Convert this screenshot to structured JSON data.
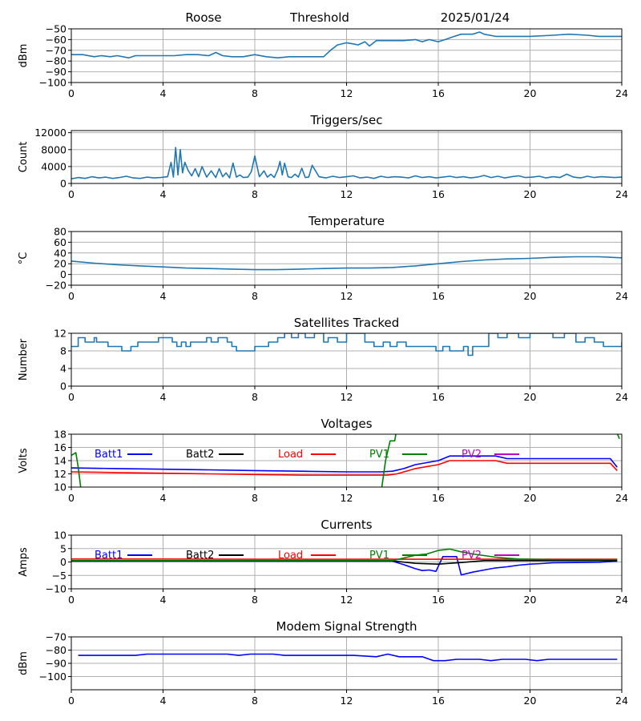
{
  "header": {
    "station": "Roose",
    "mode": "Threshold",
    "date": "2025/01/24"
  },
  "colors": {
    "default": "#1f77b4",
    "batt1": "#0000ff",
    "batt2": "#000000",
    "load": "#ff0000",
    "pv1": "#008000",
    "pv2": "#c000c0",
    "grid": "#b0b0b0"
  },
  "chart_data": [
    {
      "id": "signal",
      "type": "line",
      "title": "",
      "xlabel": "",
      "ylabel": "dBm",
      "xlim": [
        0,
        24
      ],
      "xticks": [
        0,
        4,
        8,
        12,
        16,
        20,
        24
      ],
      "ylim": [
        -100,
        -50
      ],
      "yticks": [
        -100,
        -90,
        -80,
        -70,
        -60,
        -50
      ],
      "grid": true,
      "series": [
        {
          "color": "#1f77b4",
          "x": [
            0,
            0.5,
            1,
            1.3,
            1.7,
            2,
            2.5,
            2.8,
            3,
            3.5,
            4,
            4.5,
            5,
            5.5,
            6,
            6.3,
            6.6,
            7,
            7.5,
            8,
            8.5,
            9,
            9.5,
            10,
            10.5,
            11,
            11.3,
            11.6,
            12,
            12.3,
            12.5,
            12.8,
            13,
            13.3,
            14,
            14.5,
            15,
            15.3,
            15.6,
            16,
            16.3,
            16.7,
            17,
            17.5,
            17.8,
            18,
            18.5,
            19,
            20,
            21,
            21.7,
            22.5,
            23,
            24
          ],
          "y": [
            -74,
            -74,
            -76,
            -75,
            -76,
            -75,
            -77,
            -75,
            -75,
            -75,
            -75,
            -75,
            -74,
            -74,
            -75,
            -72,
            -75,
            -76,
            -76,
            -74,
            -76,
            -77,
            -76,
            -76,
            -76,
            -76,
            -70,
            -65,
            -63,
            -64,
            -65,
            -62,
            -66,
            -61,
            -61,
            -61,
            -60,
            -62,
            -60,
            -62,
            -60,
            -57,
            -55,
            -55,
            -53,
            -55,
            -57,
            -57,
            -57,
            -56,
            -55,
            -56,
            -57,
            -57
          ]
        }
      ]
    },
    {
      "id": "triggers",
      "type": "line",
      "title": "Triggers/sec",
      "xlabel": "",
      "ylabel": "Count",
      "xlim": [
        0,
        24
      ],
      "xticks": [
        0,
        4,
        8,
        12,
        16,
        20,
        24
      ],
      "ylim": [
        0,
        12500
      ],
      "yticks": [
        0,
        4000,
        8000,
        12000
      ],
      "grid": true,
      "series": [
        {
          "color": "#1f77b4",
          "x": [
            0,
            0.3,
            0.6,
            0.9,
            1.2,
            1.5,
            1.8,
            2.1,
            2.4,
            2.7,
            3,
            3.3,
            3.6,
            3.9,
            4.2,
            4.35,
            4.45,
            4.55,
            4.65,
            4.75,
            4.85,
            4.95,
            5.1,
            5.25,
            5.4,
            5.55,
            5.7,
            5.9,
            6.1,
            6.3,
            6.45,
            6.6,
            6.75,
            6.9,
            7.05,
            7.2,
            7.35,
            7.5,
            7.7,
            7.85,
            8.0,
            8.2,
            8.4,
            8.55,
            8.7,
            8.85,
            9.0,
            9.1,
            9.2,
            9.3,
            9.45,
            9.6,
            9.75,
            9.9,
            10.05,
            10.2,
            10.35,
            10.5,
            10.8,
            11.1,
            11.4,
            11.7,
            12,
            12.3,
            12.6,
            12.9,
            13.2,
            13.5,
            13.8,
            14.1,
            14.4,
            14.7,
            15,
            15.3,
            15.6,
            15.9,
            16.2,
            16.5,
            16.8,
            17.1,
            17.4,
            17.7,
            18,
            18.3,
            18.6,
            18.9,
            19.2,
            19.5,
            19.8,
            20.1,
            20.4,
            20.7,
            21,
            21.3,
            21.6,
            21.9,
            22.2,
            22.5,
            22.8,
            23.1,
            23.4,
            23.7,
            24
          ],
          "y": [
            1100,
            1400,
            1200,
            1600,
            1300,
            1500,
            1200,
            1400,
            1700,
            1300,
            1200,
            1500,
            1300,
            1400,
            1600,
            5000,
            1500,
            8500,
            2000,
            8000,
            2500,
            5000,
            3000,
            1800,
            3500,
            1600,
            4000,
            1500,
            3000,
            1400,
            3500,
            1600,
            2500,
            1300,
            4800,
            1500,
            2000,
            1400,
            1500,
            2800,
            6500,
            1600,
            3000,
            1500,
            2200,
            1400,
            3200,
            5200,
            2000,
            4800,
            1600,
            1400,
            2200,
            1500,
            3600,
            1400,
            1500,
            4300,
            1600,
            1300,
            1700,
            1400,
            1600,
            1800,
            1300,
            1500,
            1200,
            1700,
            1400,
            1600,
            1500,
            1300,
            1800,
            1400,
            1600,
            1300,
            1500,
            1700,
            1400,
            1600,
            1300,
            1500,
            1900,
            1400,
            1700,
            1300,
            1600,
            1800,
            1400,
            1500,
            1700,
            1300,
            1600,
            1400,
            2200,
            1500,
            1300,
            1700,
            1400,
            1600,
            1500,
            1400,
            1500
          ]
        }
      ]
    },
    {
      "id": "temperature",
      "type": "line",
      "title": "Temperature",
      "xlabel": "",
      "ylabel": "°C",
      "xlim": [
        0,
        24
      ],
      "xticks": [
        0,
        4,
        8,
        12,
        16,
        20,
        24
      ],
      "ylim": [
        -20,
        80
      ],
      "yticks": [
        -20,
        0,
        20,
        40,
        60,
        80
      ],
      "grid": true,
      "series": [
        {
          "color": "#1f77b4",
          "x": [
            0,
            1,
            2,
            3,
            4,
            5,
            6,
            7,
            8,
            9,
            10,
            11,
            12,
            13,
            14,
            15,
            16,
            17,
            18,
            19,
            20,
            21,
            22,
            23,
            24
          ],
          "y": [
            25,
            21,
            18,
            16,
            14,
            12,
            11,
            10,
            9,
            9,
            10,
            11,
            12,
            12,
            13,
            16,
            20,
            24,
            27,
            29,
            30,
            32,
            33,
            33,
            31
          ]
        }
      ]
    },
    {
      "id": "satellites",
      "type": "line",
      "title": "Satellites Tracked",
      "xlabel": "",
      "ylabel": "Number",
      "xlim": [
        0,
        24
      ],
      "xticks": [
        0,
        4,
        8,
        12,
        16,
        20,
        24
      ],
      "ylim": [
        0,
        12
      ],
      "yticks": [
        0,
        4,
        8,
        12
      ],
      "grid": true,
      "series": [
        {
          "color": "#1f77b4",
          "step": true,
          "x": [
            0,
            0.3,
            0.6,
            1,
            1.1,
            1.3,
            1.6,
            2.2,
            2.6,
            2.9,
            3.5,
            3.8,
            4.2,
            4.4,
            4.6,
            4.8,
            5.0,
            5.2,
            5.4,
            5.7,
            5.9,
            6.1,
            6.4,
            6.8,
            7.0,
            7.2,
            7.6,
            8.0,
            8.4,
            8.6,
            9.0,
            9.3,
            9.6,
            9.9,
            10.2,
            10.6,
            11.0,
            11.2,
            11.6,
            12.0,
            12.4,
            12.8,
            13.2,
            13.6,
            13.9,
            14.2,
            14.6,
            15.0,
            15.5,
            15.9,
            16.2,
            16.5,
            16.8,
            17.1,
            17.3,
            17.5,
            17.8,
            18.2,
            18.6,
            19.0,
            19.5,
            20.0,
            20.5,
            21.0,
            21.5,
            22.0,
            22.4,
            22.8,
            23.2,
            23.6,
            24
          ],
          "y": [
            9,
            11,
            10,
            11,
            10,
            10,
            9,
            8,
            9,
            10,
            10,
            11,
            11,
            10,
            9,
            10,
            9,
            10,
            10,
            10,
            11,
            10,
            11,
            10,
            9,
            8,
            8,
            9,
            9,
            10,
            11,
            12,
            11,
            12,
            11,
            12,
            10,
            11,
            10,
            12,
            12,
            10,
            9,
            10,
            9,
            10,
            9,
            9,
            9,
            8,
            9,
            8,
            8,
            9,
            7,
            9,
            9,
            12,
            11,
            12,
            11,
            12,
            12,
            11,
            12,
            10,
            11,
            10,
            9,
            9,
            10
          ]
        }
      ]
    },
    {
      "id": "voltages",
      "type": "line",
      "title": "Voltages",
      "xlabel": "",
      "ylabel": "Volts",
      "xlim": [
        0,
        24
      ],
      "xticks": [
        0,
        4,
        8,
        12,
        16,
        20,
        24
      ],
      "ylim": [
        10,
        18
      ],
      "yticks": [
        10,
        12,
        14,
        16,
        18
      ],
      "grid": true,
      "legend": [
        "Batt1",
        "Batt2",
        "Load",
        "PV1",
        "PV2"
      ],
      "legend_position": "top",
      "series": [
        {
          "name": "Batt1",
          "color": "#0000ff",
          "x": [
            0,
            2,
            4,
            6,
            8,
            10,
            12,
            13.5,
            14,
            14.5,
            15,
            15.5,
            16,
            16.5,
            17,
            18,
            18.5,
            19,
            20,
            22,
            23.5,
            23.8
          ],
          "y": [
            12.9,
            12.8,
            12.7,
            12.6,
            12.5,
            12.4,
            12.3,
            12.3,
            12.4,
            12.8,
            13.4,
            13.7,
            14.0,
            14.7,
            14.7,
            14.7,
            14.7,
            14.3,
            14.3,
            14.3,
            14.3,
            13.0
          ]
        },
        {
          "name": "Load",
          "color": "#ff0000",
          "x": [
            0,
            2,
            4,
            6,
            8,
            10,
            12,
            13.8,
            14.2,
            15,
            15.5,
            16,
            16.5,
            17,
            18,
            18.5,
            19,
            20,
            22,
            23.5,
            23.8
          ],
          "y": [
            12.3,
            12.2,
            12.1,
            12.0,
            11.9,
            11.8,
            11.8,
            11.8,
            12.0,
            12.8,
            13.1,
            13.4,
            14.0,
            14.0,
            14.0,
            14.0,
            13.6,
            13.6,
            13.6,
            13.6,
            12.5
          ]
        },
        {
          "name": "PV1",
          "color": "#008000",
          "x": [
            0,
            0.2,
            0.3,
            0.4,
            0.45,
            13.5,
            13.7,
            13.9,
            14.1,
            14.2,
            23.7,
            23.9
          ],
          "y": [
            14.8,
            15.2,
            13.0,
            10.2,
            9.0,
            9.0,
            14.0,
            17.0,
            17.0,
            19.0,
            19.0,
            17.3
          ]
        }
      ]
    },
    {
      "id": "currents",
      "type": "line",
      "title": "Currents",
      "xlabel": "",
      "ylabel": "Amps",
      "xlim": [
        0,
        24
      ],
      "xticks": [
        0,
        4,
        8,
        12,
        16,
        20,
        24
      ],
      "ylim": [
        -10,
        10
      ],
      "yticks": [
        -10,
        -5,
        0,
        5,
        10
      ],
      "grid": true,
      "legend": [
        "Batt1",
        "Batt2",
        "Load",
        "PV1",
        "PV2"
      ],
      "legend_position": "top",
      "series": [
        {
          "name": "Batt1",
          "color": "#0000ff",
          "x": [
            0,
            4,
            8,
            12,
            14,
            14.5,
            15,
            15.3,
            15.6,
            15.9,
            16.2,
            16.4,
            16.8,
            17,
            17.5,
            18,
            18.5,
            19,
            19.5,
            20,
            20.5,
            21,
            22,
            23,
            23.8
          ],
          "y": [
            0.3,
            0.3,
            0.3,
            0.3,
            0.3,
            -1.0,
            -2.5,
            -3.2,
            -3.0,
            -3.5,
            2.0,
            2.0,
            2.0,
            -4.8,
            -3.8,
            -3.0,
            -2.2,
            -1.8,
            -1.2,
            -0.8,
            -0.6,
            -0.3,
            -0.2,
            -0.1,
            0.3
          ]
        },
        {
          "name": "Batt2",
          "color": "#000000",
          "x": [
            0,
            4,
            8,
            12,
            14,
            15,
            16,
            17,
            18,
            20,
            22,
            23.8
          ],
          "y": [
            0.4,
            0.4,
            0.4,
            0.4,
            0.4,
            -0.5,
            -0.8,
            -0.2,
            0.5,
            0.5,
            0.5,
            0.5
          ]
        },
        {
          "name": "Load",
          "color": "#ff0000",
          "x": [
            0,
            4,
            8,
            12,
            16,
            20,
            23.8
          ],
          "y": [
            1.1,
            1.1,
            1.0,
            1.0,
            1.0,
            1.0,
            1.0
          ]
        },
        {
          "name": "PV1",
          "color": "#008000",
          "x": [
            0,
            4,
            8,
            12,
            14,
            14.5,
            15,
            15.5,
            16,
            16.5,
            17,
            17.5,
            18,
            18.5,
            19,
            19.5,
            20,
            21,
            22,
            23.8
          ],
          "y": [
            0.5,
            0.5,
            0.5,
            0.5,
            0.5,
            1.5,
            2.5,
            3.0,
            4.3,
            4.8,
            3.8,
            3.0,
            2.4,
            1.8,
            1.4,
            1.1,
            1.0,
            0.9,
            0.9,
            0.9
          ]
        }
      ]
    },
    {
      "id": "modem",
      "type": "line",
      "title": "Modem Signal Strength",
      "xlabel": "",
      "ylabel": "dBm",
      "xlim": [
        0,
        24
      ],
      "xticks": [
        0,
        4,
        8,
        12,
        16,
        20,
        24
      ],
      "ylim": [
        -110,
        -70
      ],
      "yticks": [
        -100,
        -90,
        -80,
        -70
      ],
      "ytick_labels": [
        "−100",
        "−90",
        "−80",
        "−70"
      ],
      "grid": true,
      "series": [
        {
          "color": "#0000ff",
          "x": [
            0.3,
            2.8,
            3.3,
            6.8,
            7.3,
            7.8,
            8.8,
            9.3,
            12.3,
            13.3,
            13.8,
            14.3,
            15.3,
            15.8,
            16.3,
            16.8,
            17.8,
            18.3,
            18.8,
            19.8,
            20.3,
            20.8,
            23.8
          ],
          "y": [
            -84,
            -84,
            -83,
            -83,
            -84,
            -83,
            -83,
            -84,
            -84,
            -85,
            -83,
            -85,
            -85,
            -88,
            -88,
            -87,
            -87,
            -88,
            -87,
            -87,
            -88,
            -87,
            -87
          ]
        }
      ]
    }
  ]
}
